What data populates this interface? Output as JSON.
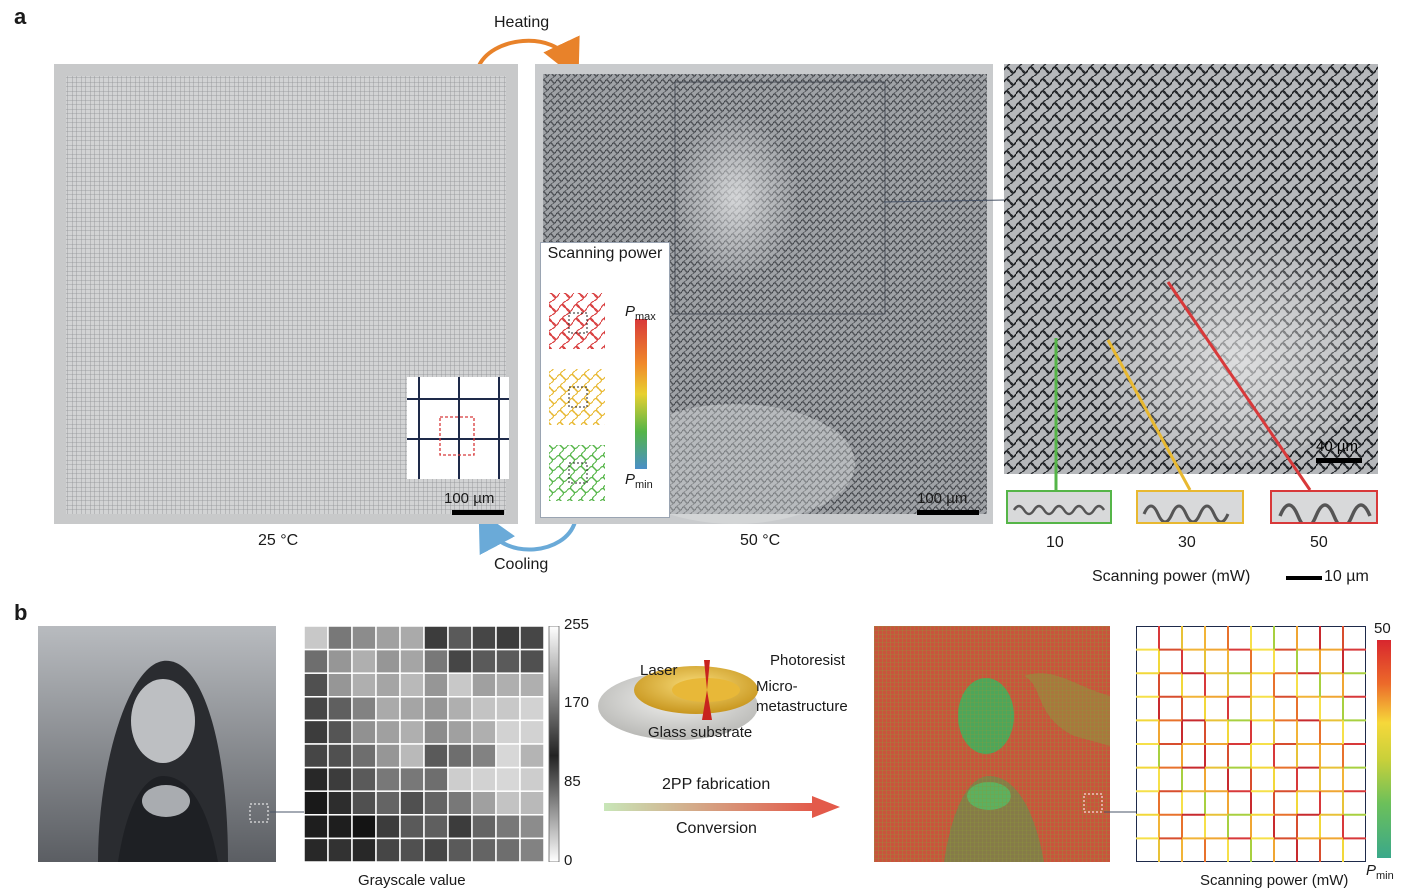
{
  "panel_a": {
    "letter": "a",
    "heating_label": "Heating",
    "cooling_label": "Cooling",
    "temp_left": "25 °C",
    "temp_right": "50 °C",
    "scale_left": "100 µm",
    "scale_mid": "100 µm",
    "scale_right": "40 µm",
    "legend_title": "Scanning power",
    "legend_pmax": "P",
    "legend_pmax_sub": "max",
    "legend_pmin": "P",
    "legend_pmin_sub": "min",
    "power_values": [
      "10",
      "30",
      "50"
    ],
    "power_axis_label": "Scanning power (mW)",
    "power_scale": "10 µm"
  },
  "panel_b": {
    "letter": "b",
    "grayscale_label": "Grayscale value",
    "gray_ticks": [
      "255",
      "170",
      "85",
      "0"
    ],
    "diagram_labels": {
      "laser": "Laser",
      "photoresist": "Photoresist",
      "micro": "Micro-",
      "metastructure": "metastructure",
      "glass": "Glass substrate"
    },
    "arrow_top": "2PP fabrication",
    "arrow_bottom": "Conversion",
    "power_tick_top": "50",
    "power_label": "Scanning power (mW)",
    "pmin": "P",
    "pmin_sub": "min"
  },
  "colors": {
    "heating_arrow": "#e8822a",
    "cooling_arrow": "#6aaad8",
    "red_line": "#d8393a",
    "yellow_line": "#e8b830",
    "green_line": "#55b548",
    "grid_navy": "#1e2a4a"
  }
}
